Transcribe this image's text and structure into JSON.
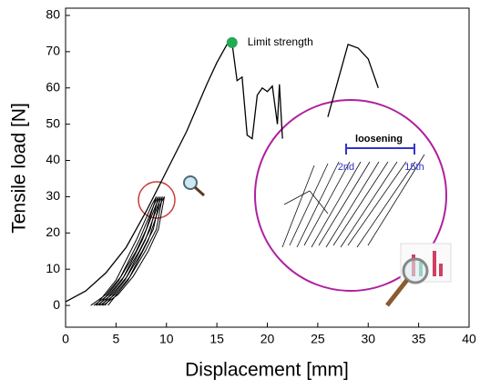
{
  "chart_data": {
    "type": "line",
    "x_label": "Displacement [mm]",
    "y_label": "Tensile load [N]",
    "xlim": [
      0,
      40
    ],
    "xticks": [
      0,
      5,
      10,
      15,
      20,
      25,
      30,
      35,
      40
    ],
    "ylim": [
      -6,
      82
    ],
    "yticks": [
      0,
      10,
      20,
      30,
      40,
      50,
      60,
      70,
      80
    ],
    "series": [
      {
        "color": "#000000",
        "x": [
          0,
          2,
          4,
          6,
          8,
          10,
          12,
          14,
          15,
          16,
          16.5,
          17,
          17.5,
          18,
          18.5,
          19,
          19.5,
          20,
          20.5,
          21,
          21.2,
          21.5,
          null,
          26,
          27,
          28,
          29,
          30,
          30.5,
          31
        ],
        "values": [
          1,
          4,
          9,
          16,
          26,
          37,
          48,
          61,
          67,
          72,
          72.5,
          62,
          63,
          47,
          46,
          58,
          60,
          59,
          60.5,
          50,
          61,
          46,
          null,
          52,
          62,
          72,
          71,
          68,
          64,
          60
        ]
      },
      {
        "color": "#000000",
        "x": [
          2.5,
          4,
          5.5,
          7,
          8,
          9,
          8.6,
          7,
          5,
          3
        ],
        "values": [
          0,
          3,
          8,
          15,
          21,
          30,
          28,
          18,
          7,
          0
        ]
      },
      {
        "color": "#000000",
        "x": [
          2.8,
          4.3,
          5.8,
          7.3,
          8.4,
          9.2,
          8.8,
          7.3,
          5.3,
          3.3
        ],
        "values": [
          0,
          3,
          8,
          15,
          21,
          30,
          28,
          18,
          7,
          0
        ]
      },
      {
        "color": "#000000",
        "x": [
          3.1,
          4.6,
          6.1,
          7.6,
          8.7,
          9.4,
          9,
          7.6,
          5.6,
          3.6
        ],
        "values": [
          0,
          3,
          8,
          15,
          21,
          30,
          28,
          18,
          7,
          0
        ]
      },
      {
        "color": "#000000",
        "x": [
          3.4,
          4.9,
          6.4,
          7.9,
          9,
          9.6,
          9.2,
          7.9,
          5.9,
          3.9
        ],
        "values": [
          0,
          3,
          8,
          15,
          21,
          30,
          28,
          18,
          7,
          0
        ]
      },
      {
        "color": "#000000",
        "x": [
          3.7,
          5.2,
          6.7,
          8.2,
          9.2,
          9.8,
          9.4,
          8.2,
          6.2,
          4.2
        ],
        "values": [
          0,
          3,
          8,
          15,
          21,
          30,
          28,
          18,
          7,
          0
        ]
      }
    ],
    "limit_point": {
      "label": "Limit strength",
      "x": 16.5,
      "value": 72.5,
      "color": "#22aa55"
    },
    "inset": {
      "label": "loosening",
      "start": "2nd",
      "end": "15th"
    }
  }
}
